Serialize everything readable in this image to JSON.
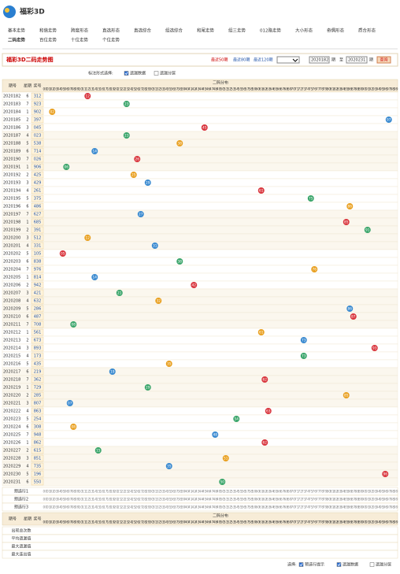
{
  "header": {
    "logo": "福彩3D",
    "nav_row1": [
      "基本走势",
      "和值走势",
      "跨度形态",
      "直选形态",
      "直选综合",
      "组选综合",
      "和尾走势",
      "组三走势",
      "012路走势",
      "大小形态",
      "奇偶形态",
      "质合形态"
    ],
    "nav_row2": [
      "二码走势",
      "百位走势",
      "十位走势",
      "个位走势"
    ]
  },
  "toolbar": {
    "title": "福彩3D二码走势图",
    "recent": [
      "最近50期",
      "最近80期",
      "最近120期"
    ],
    "from": "2020182",
    "from_unit": "期",
    "to_label": "至",
    "to": "2020231",
    "to_unit": "期",
    "button": "查询"
  },
  "options": {
    "label": "标注形式选择:",
    "items": [
      "遗漏数据",
      "遗漏分层"
    ]
  },
  "table": {
    "head": [
      "期号",
      "星期",
      "奖号"
    ],
    "group": "二码分布",
    "columns": [
      "00",
      "01",
      "02",
      "03",
      "04",
      "05",
      "06",
      "07",
      "08",
      "09",
      "10",
      "11",
      "12",
      "13",
      "14",
      "15",
      "16",
      "17",
      "18",
      "19",
      "20",
      "21",
      "22",
      "23",
      "24",
      "25",
      "26",
      "27",
      "28",
      "29",
      "30",
      "31",
      "32",
      "33",
      "34",
      "35",
      "36",
      "37",
      "38",
      "39",
      "40",
      "41",
      "42",
      "43",
      "44",
      "45",
      "46",
      "47",
      "48",
      "49",
      "50",
      "51",
      "52",
      "53",
      "54",
      "55",
      "56",
      "57",
      "58",
      "59",
      "60",
      "61",
      "62",
      "63",
      "64",
      "65",
      "66",
      "67",
      "68",
      "69",
      "70",
      "71",
      "72",
      "73",
      "74",
      "75",
      "76",
      "77",
      "78",
      "79",
      "80",
      "81",
      "82",
      "83",
      "84",
      "85",
      "86",
      "87",
      "88",
      "89",
      "90",
      "91",
      "92",
      "93",
      "94",
      "95",
      "96",
      "97",
      "98",
      "99"
    ],
    "rows": [
      {
        "period": "2020182",
        "week": "6",
        "number": "312",
        "hit": "12"
      },
      {
        "period": "2020183",
        "week": "7",
        "number": "923",
        "hit": "23"
      },
      {
        "period": "2020184",
        "week": "1",
        "number": "902",
        "hit": "02"
      },
      {
        "period": "2020185",
        "week": "2",
        "number": "397",
        "hit": "97"
      },
      {
        "period": "2020186",
        "week": "3",
        "number": "045",
        "hit": "45"
      },
      {
        "period": "2020187",
        "week": "4",
        "number": "023",
        "hit": "23"
      },
      {
        "period": "2020188",
        "week": "5",
        "number": "538",
        "hit": "38"
      },
      {
        "period": "2020189",
        "week": "6",
        "number": "714",
        "hit": "14"
      },
      {
        "period": "2020190",
        "week": "7",
        "number": "026",
        "hit": "26"
      },
      {
        "period": "2020191",
        "week": "1",
        "number": "906",
        "hit": "06"
      },
      {
        "period": "2020192",
        "week": "2",
        "number": "425",
        "hit": "25"
      },
      {
        "period": "2020193",
        "week": "3",
        "number": "429",
        "hit": "29"
      },
      {
        "period": "2020194",
        "week": "4",
        "number": "261",
        "hit": "61"
      },
      {
        "period": "2020195",
        "week": "5",
        "number": "375",
        "hit": "75"
      },
      {
        "period": "2020196",
        "week": "6",
        "number": "486",
        "hit": "86"
      },
      {
        "period": "2020197",
        "week": "7",
        "number": "627",
        "hit": "27"
      },
      {
        "period": "2020198",
        "week": "1",
        "number": "685",
        "hit": "85"
      },
      {
        "period": "2020199",
        "week": "2",
        "number": "391",
        "hit": "91"
      },
      {
        "period": "2020200",
        "week": "3",
        "number": "512",
        "hit": "12"
      },
      {
        "period": "2020201",
        "week": "4",
        "number": "331",
        "hit": "31"
      },
      {
        "period": "2020202",
        "week": "5",
        "number": "105",
        "hit": "05"
      },
      {
        "period": "2020203",
        "week": "6",
        "number": "838",
        "hit": "38"
      },
      {
        "period": "2020204",
        "week": "7",
        "number": "976",
        "hit": "76"
      },
      {
        "period": "2020205",
        "week": "1",
        "number": "814",
        "hit": "14"
      },
      {
        "period": "2020206",
        "week": "2",
        "number": "942",
        "hit": "42"
      },
      {
        "period": "2020207",
        "week": "3",
        "number": "421",
        "hit": "21"
      },
      {
        "period": "2020208",
        "week": "4",
        "number": "632",
        "hit": "32"
      },
      {
        "period": "2020209",
        "week": "5",
        "number": "286",
        "hit": "86"
      },
      {
        "period": "2020210",
        "week": "6",
        "number": "487",
        "hit": "87"
      },
      {
        "period": "2020211",
        "week": "7",
        "number": "708",
        "hit": "08"
      },
      {
        "period": "2020212",
        "week": "1",
        "number": "561",
        "hit": "61"
      },
      {
        "period": "2020213",
        "week": "2",
        "number": "673",
        "hit": "73"
      },
      {
        "period": "2020214",
        "week": "3",
        "number": "893",
        "hit": "93"
      },
      {
        "period": "2020215",
        "week": "4",
        "number": "173",
        "hit": "73"
      },
      {
        "period": "2020216",
        "week": "5",
        "number": "435",
        "hit": "35"
      },
      {
        "period": "2020217",
        "week": "6",
        "number": "219",
        "hit": "19"
      },
      {
        "period": "2020218",
        "week": "7",
        "number": "362",
        "hit": "62"
      },
      {
        "period": "2020219",
        "week": "1",
        "number": "729",
        "hit": "29"
      },
      {
        "period": "2020220",
        "week": "2",
        "number": "285",
        "hit": "85"
      },
      {
        "period": "2020221",
        "week": "3",
        "number": "807",
        "hit": "07"
      },
      {
        "period": "2020222",
        "week": "4",
        "number": "863",
        "hit": "63"
      },
      {
        "period": "2020223",
        "week": "5",
        "number": "254",
        "hit": "54"
      },
      {
        "period": "2020224",
        "week": "6",
        "number": "308",
        "hit": "08"
      },
      {
        "period": "2020225",
        "week": "7",
        "number": "948",
        "hit": "48"
      },
      {
        "period": "2020226",
        "week": "1",
        "number": "862",
        "hit": "62"
      },
      {
        "period": "2020227",
        "week": "2",
        "number": "615",
        "hit": "15"
      },
      {
        "period": "2020228",
        "week": "3",
        "number": "851",
        "hit": "51"
      },
      {
        "period": "2020229",
        "week": "4",
        "number": "735",
        "hit": "35"
      },
      {
        "period": "2020230",
        "week": "5",
        "number": "196",
        "hit": "96"
      },
      {
        "period": "2020231",
        "week": "6",
        "number": "550",
        "hit": "50"
      }
    ],
    "preselect": [
      "预选行1",
      "预选行2",
      "预选行3"
    ],
    "stats": [
      "出现总次数",
      "平均遗漏值",
      "最大遗漏值",
      "最大连出值"
    ]
  },
  "footer": {
    "label": "选择:",
    "items": [
      "预选行提示",
      "遗漏数据",
      "遗漏分层"
    ]
  }
}
